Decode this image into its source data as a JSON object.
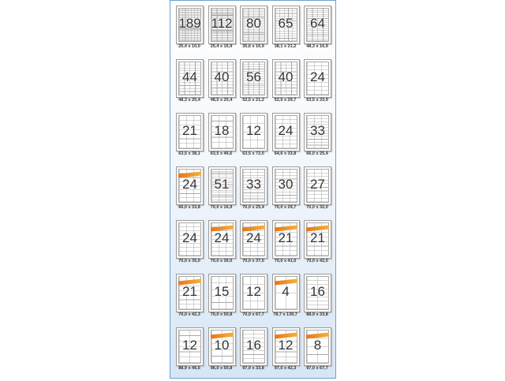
{
  "sheets": [
    {
      "count": "189",
      "size": "25,4 x 10,0",
      "cols": 7,
      "rows": 27,
      "brand": false
    },
    {
      "count": "112",
      "size": "25,4 x 16,9",
      "cols": 4,
      "rows": 28,
      "brand": false
    },
    {
      "count": "80",
      "size": "35,6 x 16,9",
      "cols": 4,
      "rows": 20,
      "brand": false
    },
    {
      "count": "65",
      "size": "38,1 x 21,2",
      "cols": 5,
      "rows": 13,
      "brand": false
    },
    {
      "count": "64",
      "size": "48,3 x 16,9",
      "cols": 4,
      "rows": 16,
      "brand": false
    },
    {
      "count": "44",
      "size": "48,3 x 25,4",
      "cols": 4,
      "rows": 11,
      "brand": false
    },
    {
      "count": "40",
      "size": "48,5 x 25,4",
      "cols": 4,
      "rows": 10,
      "brand": false
    },
    {
      "count": "56",
      "size": "52,5 x 21,2",
      "cols": 4,
      "rows": 14,
      "brand": false
    },
    {
      "count": "40",
      "size": "52,5 x 29,7",
      "cols": 4,
      "rows": 10,
      "brand": false
    },
    {
      "count": "24",
      "size": "63,5 x 33,9",
      "cols": 3,
      "rows": 8,
      "brand": false
    },
    {
      "count": "21",
      "size": "63,5 x 38,1",
      "cols": 3,
      "rows": 7,
      "brand": false
    },
    {
      "count": "18",
      "size": "63,5 x 46,6",
      "cols": 3,
      "rows": 6,
      "brand": false
    },
    {
      "count": "12",
      "size": "63,5 x 72,0",
      "cols": 3,
      "rows": 4,
      "brand": false
    },
    {
      "count": "24",
      "size": "64,6 x 33,8",
      "cols": 3,
      "rows": 8,
      "brand": false
    },
    {
      "count": "33",
      "size": "66,0 x 25,4",
      "cols": 3,
      "rows": 11,
      "brand": false
    },
    {
      "count": "24",
      "size": "66,0 x 33,8",
      "cols": 3,
      "rows": 8,
      "brand": true
    },
    {
      "count": "51",
      "size": "70,0 x 16,9",
      "cols": 3,
      "rows": 17,
      "brand": false
    },
    {
      "count": "33",
      "size": "70,0 x 25,4",
      "cols": 3,
      "rows": 11,
      "brand": false
    },
    {
      "count": "30",
      "size": "70,0 x 29,7",
      "cols": 3,
      "rows": 10,
      "brand": false
    },
    {
      "count": "27",
      "size": "70,0 x 32,0",
      "cols": 3,
      "rows": 9,
      "brand": false
    },
    {
      "count": "24",
      "size": "70,0 x 35,0",
      "cols": 3,
      "rows": 8,
      "brand": false
    },
    {
      "count": "24",
      "size": "70,0 x 36,0",
      "cols": 3,
      "rows": 8,
      "brand": true
    },
    {
      "count": "24",
      "size": "70,0 x 37,0",
      "cols": 3,
      "rows": 8,
      "brand": true
    },
    {
      "count": "21",
      "size": "70,0 x 41,0",
      "cols": 3,
      "rows": 7,
      "brand": true
    },
    {
      "count": "21",
      "size": "70,0 x 42,0",
      "cols": 3,
      "rows": 7,
      "brand": true
    },
    {
      "count": "21",
      "size": "70,0 x 42,3",
      "cols": 3,
      "rows": 7,
      "brand": true
    },
    {
      "count": "15",
      "size": "70,0 x 50,8",
      "cols": 3,
      "rows": 5,
      "brand": false
    },
    {
      "count": "12",
      "size": "70,0 x 67,7",
      "cols": 3,
      "rows": 4,
      "brand": false
    },
    {
      "count": "4",
      "size": "78,7 x 139,7",
      "cols": 2,
      "rows": 2,
      "brand": true
    },
    {
      "count": "16",
      "size": "88,9 x 33,8",
      "cols": 2,
      "rows": 8,
      "brand": false
    },
    {
      "count": "12",
      "size": "88,9 x 46,6",
      "cols": 2,
      "rows": 6,
      "brand": false
    },
    {
      "count": "10",
      "size": "96,0 x 50,8",
      "cols": 2,
      "rows": 5,
      "brand": true
    },
    {
      "count": "16",
      "size": "97,0 x 33,8",
      "cols": 2,
      "rows": 8,
      "brand": false
    },
    {
      "count": "12",
      "size": "97,0 x 42,3",
      "cols": 2,
      "rows": 6,
      "brand": true
    },
    {
      "count": "8",
      "size": "97,0 x 67,7",
      "cols": 2,
      "rows": 4,
      "brand": true
    }
  ],
  "colors": {
    "border": "#6f9fcf",
    "label_lines": "#a8a8a8",
    "brand": "#e8731a"
  }
}
